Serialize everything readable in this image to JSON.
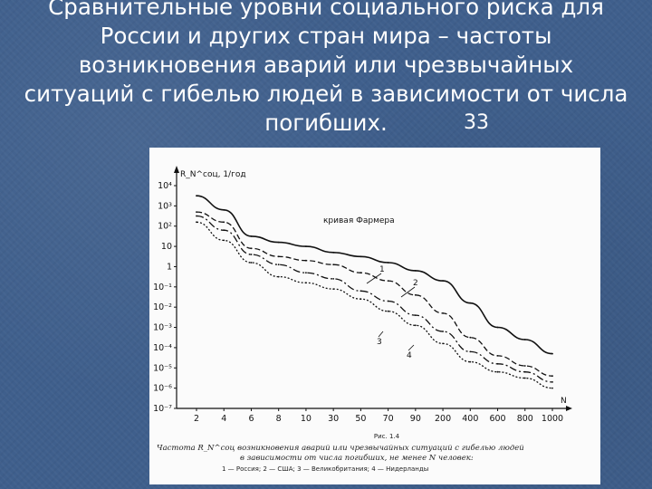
{
  "slide": {
    "title_lines": [
      "Сравнительные уровни социального риска для",
      "России и других стран мира – частоты",
      "возникновения аварий или чрезвычайных",
      "ситуаций с гибелью людей в зависимости от числа",
      "погибших."
    ],
    "slide_number": "33"
  },
  "chart_data": {
    "type": "line",
    "ylabel": "R_N^соц, 1/год",
    "xlabel": "N",
    "y_tick_labels": [
      "10⁴",
      "10³",
      "10²",
      "10",
      "1",
      "10⁻¹",
      "10⁻²",
      "10⁻³",
      "10⁻⁴",
      "10⁻⁵",
      "10⁻⁶",
      "10⁻⁷"
    ],
    "ylim_log10": [
      -7,
      4
    ],
    "x_tick_labels": [
      "2",
      "4",
      "6",
      "8",
      "10",
      "30",
      "50",
      "70",
      "90",
      "200",
      "400",
      "600",
      "800",
      "1000"
    ],
    "annotation": "кривая Фармера",
    "series": [
      {
        "name": "1",
        "color": "#111111",
        "dash": "",
        "values": [
          3.5,
          2.8,
          1.5,
          1.2,
          1.0,
          0.7,
          0.5,
          0.2,
          -0.2,
          -0.7,
          -1.8,
          -3.0,
          -3.6,
          -4.3
        ]
      },
      {
        "name": "2",
        "color": "#111111",
        "dash": "6 3",
        "values": [
          2.7,
          2.2,
          0.9,
          0.5,
          0.3,
          0.1,
          -0.3,
          -0.7,
          -1.4,
          -2.3,
          -3.5,
          -4.4,
          -4.9,
          -5.4
        ]
      },
      {
        "name": "3",
        "color": "#111111",
        "dash": "2 2",
        "values": [
          2.2,
          1.3,
          0.2,
          -0.5,
          -0.8,
          -1.1,
          -1.6,
          -2.2,
          -2.9,
          -3.8,
          -4.7,
          -5.2,
          -5.5,
          -6.0
        ]
      },
      {
        "name": "4",
        "color": "#111111",
        "dash": "8 3 2 3",
        "values": [
          2.5,
          1.8,
          0.6,
          0.1,
          -0.3,
          -0.6,
          -1.2,
          -1.7,
          -2.4,
          -3.2,
          -4.2,
          -4.8,
          -5.2,
          -5.7
        ]
      }
    ],
    "series_labels": [
      "1",
      "2",
      "3",
      "4"
    ],
    "caption_line1": "Частота R_N^соц возникновения аварий или чрезвычайных ситуаций с гибелью людей",
    "caption_line2": "в зависимости от числа погибших, не менее N человек:",
    "caption_legend": "1 — Россия; 2 — США; 3 — Великобритания; 4 — Нидерланды",
    "figure_number": "Рис. 1.4"
  }
}
